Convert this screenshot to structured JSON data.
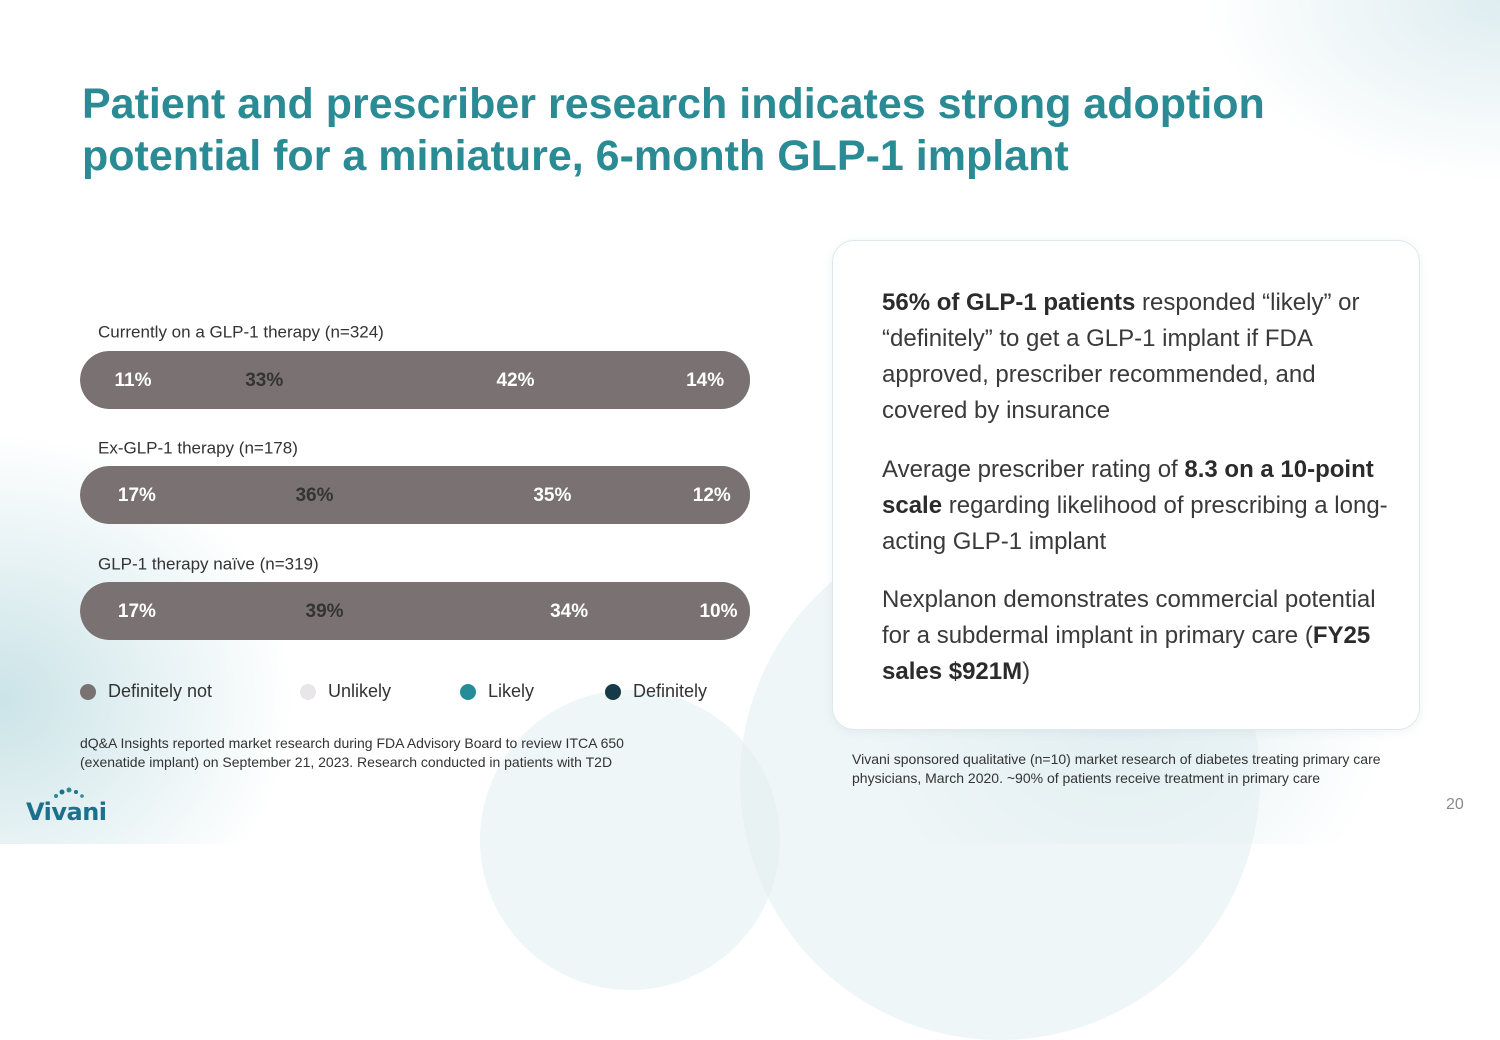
{
  "slide": {
    "title": "Patient and prescriber research indicates strong adoption potential for a miniature, 6-month GLP-1 implant",
    "page_number": "20",
    "logo_text": "Vivani"
  },
  "colors": {
    "title": "#2a8b94",
    "definitely_not": "#7a7272",
    "unlikely": "#e8e6e8",
    "likely": "#268c97",
    "definitely": "#173a48"
  },
  "chart_data": {
    "type": "bar",
    "orientation": "horizontal",
    "stacked": true,
    "percent": true,
    "categories": [
      "Currently on a GLP-1 therapy (n=324)",
      "Ex-GLP-1 therapy (n=178)",
      "GLP-1 therapy naïve (n=319)"
    ],
    "series": [
      {
        "name": "Definitely not",
        "color": "#7a7272",
        "values": [
          11,
          17,
          17
        ]
      },
      {
        "name": "Unlikely",
        "color": "#e8e6e8",
        "values": [
          33,
          36,
          39
        ]
      },
      {
        "name": "Likely",
        "color": "#268c97",
        "values": [
          42,
          35,
          34
        ]
      },
      {
        "name": "Definitely",
        "color": "#173a48",
        "values": [
          14,
          12,
          10
        ]
      }
    ],
    "legend_position": "bottom",
    "xlim": [
      0,
      100
    ]
  },
  "footnotes": {
    "left_line1": "dQ&A Insights reported market research during FDA Advisory Board to review ITCA 650",
    "left_line2": "(exenatide implant) on September 21, 2023. Research conducted in patients with T2D",
    "right": "Vivani sponsored qualitative (n=10) market research of diabetes treating primary care physicians, March 2020. ~90% of patients receive treatment in primary care"
  },
  "card": {
    "p1_bold": "56% of GLP-1 patients",
    "p1_rest": " responded “likely” or “definitely” to get a GLP-1 implant if FDA approved, prescriber recommended, and covered by insurance",
    "p2_pre": "Average prescriber rating of ",
    "p2_bold": "8.3 on a 10-point scale",
    "p2_post": " regarding likelihood of prescribing a long-acting GLP-1 implant",
    "p3_pre": "Nexplanon demonstrates commercial potential for a subdermal implant in primary care (",
    "p3_bold": "FY25 sales $921M",
    "p3_post": ")"
  }
}
